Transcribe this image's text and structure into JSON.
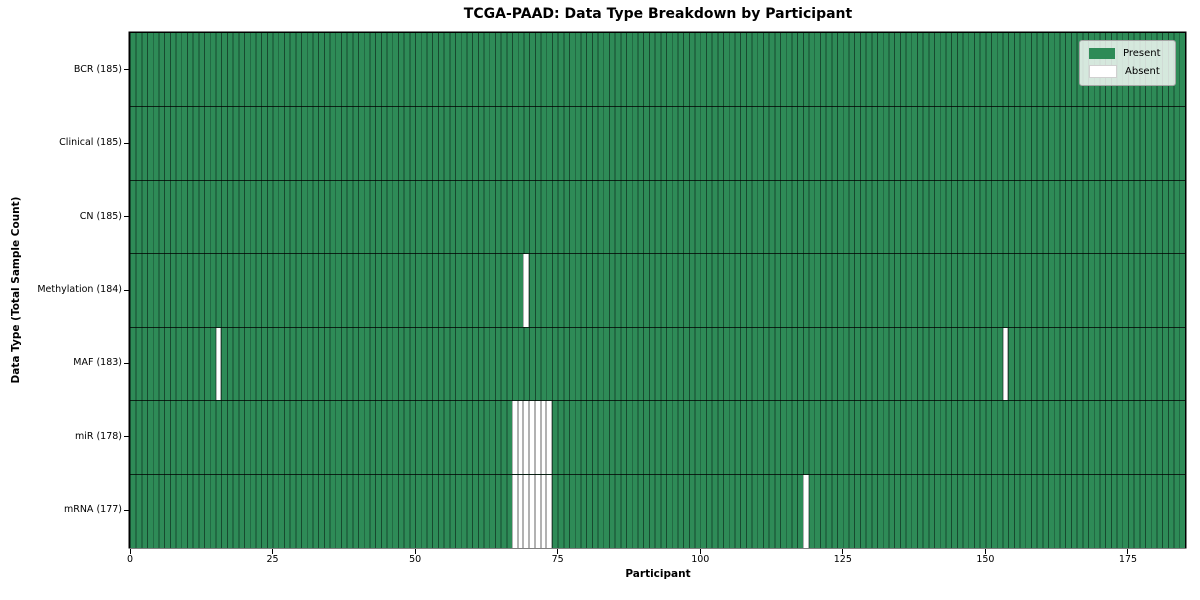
{
  "figure": {
    "title": "TCGA-PAAD: Data Type Breakdown by Participant"
  },
  "chart_data": {
    "type": "heatmap",
    "title": "TCGA-PAAD: Data Type Breakdown by Participant",
    "xlabel": "Participant",
    "ylabel": "Data Type (Total Sample Count)",
    "xlim": [
      0,
      185
    ],
    "n_participants": 185,
    "x_ticks": [
      0,
      25,
      50,
      75,
      100,
      125,
      150,
      175
    ],
    "grid": false,
    "legend_position": "upper right",
    "legend": [
      {
        "label": "Present",
        "color": "#2e8b57"
      },
      {
        "label": "Absent",
        "color": "#ffffff"
      }
    ],
    "rows": [
      {
        "label": "BCR (185)",
        "data_type": "BCR",
        "total_samples": 185,
        "absent_participants": []
      },
      {
        "label": "Clinical (185)",
        "data_type": "Clinical",
        "total_samples": 185,
        "absent_participants": []
      },
      {
        "label": "CN (185)",
        "data_type": "CN",
        "total_samples": 185,
        "absent_participants": []
      },
      {
        "label": "Methylation (184)",
        "data_type": "Methylation",
        "total_samples": 184,
        "absent_participants": [
          69
        ]
      },
      {
        "label": "MAF (183)",
        "data_type": "MAF",
        "total_samples": 183,
        "absent_participants": [
          15,
          153
        ]
      },
      {
        "label": "miR (178)",
        "data_type": "miR",
        "total_samples": 178,
        "absent_participants": [
          67,
          68,
          69,
          70,
          71,
          72,
          73
        ]
      },
      {
        "label": "mRNA (177)",
        "data_type": "mRNA",
        "total_samples": 177,
        "absent_participants": [
          67,
          68,
          69,
          70,
          71,
          72,
          73,
          118
        ]
      }
    ],
    "colors": {
      "present": "#2e8b57",
      "absent": "#ffffff",
      "cell_border": "#1b4332",
      "row_separator": "#000000",
      "spine": "#000000"
    }
  }
}
